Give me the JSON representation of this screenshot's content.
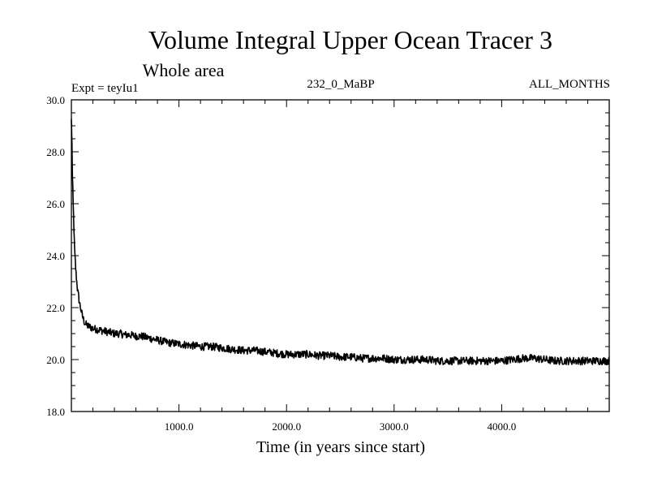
{
  "chart_data": {
    "type": "line",
    "title": "Volume Integral Upper Ocean Tracer 3",
    "subtitle": "Whole area",
    "experiment_label": "Expt = teyIu1",
    "run_label": "232_0_MaBP",
    "months_label": "ALL_MONTHS",
    "xlabel": "Time (in years since start)",
    "ylabel": "",
    "xlim": [
      0,
      5000
    ],
    "ylim": [
      18.0,
      30.0
    ],
    "x_ticks": [
      1000,
      2000,
      3000,
      4000
    ],
    "x_tick_labels": [
      "1000.0",
      "2000.0",
      "3000.0",
      "4000.0"
    ],
    "y_ticks": [
      18,
      20,
      22,
      24,
      26,
      28,
      30
    ],
    "y_tick_labels": [
      "18.0",
      "20.0",
      "22.0",
      "24.0",
      "26.0",
      "28.0",
      "30.0"
    ],
    "grid": false,
    "series": [
      {
        "color": "#000000",
        "x": [
          0,
          5,
          10,
          20,
          30,
          40,
          50,
          60,
          75,
          100,
          125,
          150,
          200,
          250,
          300,
          350,
          400,
          450,
          500,
          550,
          600,
          650,
          700,
          750,
          800,
          900,
          1000,
          1100,
          1200,
          1300,
          1400,
          1500,
          1600,
          1700,
          1800,
          1900,
          2000,
          2100,
          2200,
          2300,
          2400,
          2500,
          2600,
          2700,
          2800,
          2900,
          3000,
          3100,
          3200,
          3300,
          3400,
          3500,
          3600,
          3700,
          3800,
          3900,
          4000,
          4100,
          4200,
          4300,
          4400,
          4500,
          4600,
          4700,
          4800,
          4900,
          5000
        ],
        "y": [
          29.2,
          28.4,
          27.0,
          25.5,
          24.2,
          23.5,
          23.0,
          22.6,
          22.2,
          21.7,
          21.4,
          21.3,
          21.2,
          21.15,
          21.1,
          21.05,
          21.0,
          21.0,
          20.95,
          20.95,
          20.9,
          20.9,
          20.85,
          20.8,
          20.75,
          20.65,
          20.6,
          20.55,
          20.5,
          20.5,
          20.45,
          20.4,
          20.35,
          20.35,
          20.3,
          20.25,
          20.2,
          20.2,
          20.2,
          20.15,
          20.15,
          20.1,
          20.1,
          20.05,
          20.05,
          20.05,
          20.0,
          20.0,
          20.0,
          20.0,
          19.95,
          19.95,
          19.95,
          19.95,
          19.95,
          19.95,
          19.95,
          20.0,
          20.05,
          20.05,
          20.0,
          19.95,
          19.95,
          19.95,
          19.95,
          19.95,
          19.95
        ]
      }
    ]
  }
}
